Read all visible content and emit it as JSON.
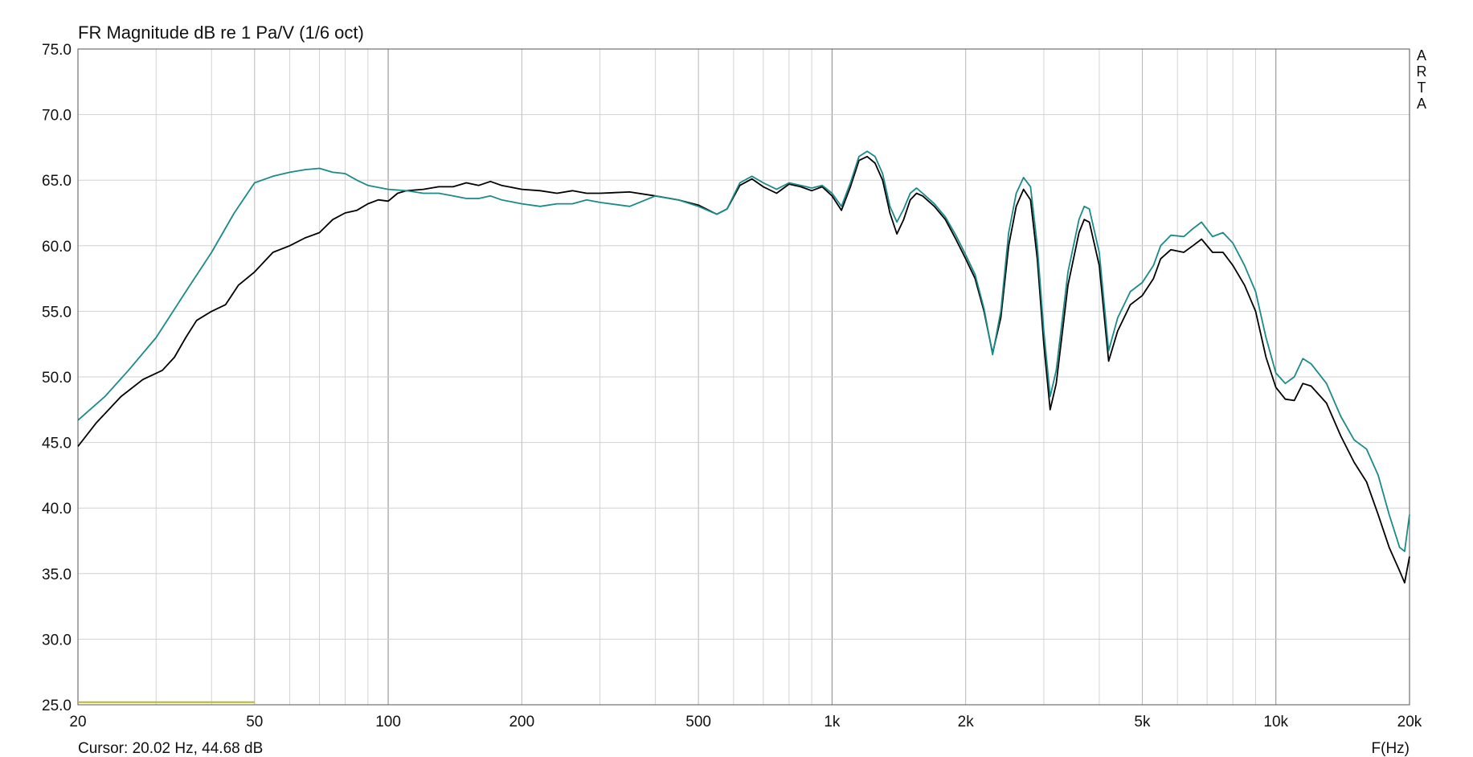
{
  "chart_data": {
    "type": "line",
    "title": "FR Magnitude dB re 1 Pa/V (1/6 oct)",
    "xlabel": "F(Hz)",
    "ylabel": "",
    "xscale": "log",
    "xlim": [
      20,
      20000
    ],
    "ylim": [
      25,
      75
    ],
    "grid": true,
    "x_tick_labels": [
      {
        "value": 20,
        "label": "20"
      },
      {
        "value": 50,
        "label": "50"
      },
      {
        "value": 100,
        "label": "100"
      },
      {
        "value": 200,
        "label": "200"
      },
      {
        "value": 500,
        "label": "500"
      },
      {
        "value": 1000,
        "label": "1k"
      },
      {
        "value": 2000,
        "label": "2k"
      },
      {
        "value": 5000,
        "label": "5k"
      },
      {
        "value": 10000,
        "label": "10k"
      },
      {
        "value": 20000,
        "label": "20k"
      }
    ],
    "y_tick_labels": [
      "25.0",
      "30.0",
      "35.0",
      "40.0",
      "45.0",
      "50.0",
      "55.0",
      "60.0",
      "65.0",
      "70.0",
      "75.0"
    ],
    "watermark": "ARTA",
    "cursor_text": "Cursor: 20.02 Hz, 44.68 dB",
    "series": [
      {
        "color": "#000000",
        "points": [
          [
            20,
            44.7
          ],
          [
            22,
            46.5
          ],
          [
            25,
            48.5
          ],
          [
            28,
            49.8
          ],
          [
            31,
            50.5
          ],
          [
            33,
            51.5
          ],
          [
            35,
            53.0
          ],
          [
            37,
            54.3
          ],
          [
            40,
            55.0
          ],
          [
            43,
            55.5
          ],
          [
            46,
            57.0
          ],
          [
            50,
            58.0
          ],
          [
            55,
            59.5
          ],
          [
            60,
            60.0
          ],
          [
            65,
            60.6
          ],
          [
            70,
            61.0
          ],
          [
            75,
            62.0
          ],
          [
            80,
            62.5
          ],
          [
            85,
            62.7
          ],
          [
            90,
            63.2
          ],
          [
            95,
            63.5
          ],
          [
            100,
            63.4
          ],
          [
            105,
            64.0
          ],
          [
            110,
            64.2
          ],
          [
            120,
            64.3
          ],
          [
            130,
            64.5
          ],
          [
            140,
            64.5
          ],
          [
            150,
            64.8
          ],
          [
            160,
            64.6
          ],
          [
            170,
            64.9
          ],
          [
            180,
            64.6
          ],
          [
            200,
            64.3
          ],
          [
            220,
            64.2
          ],
          [
            240,
            64.0
          ],
          [
            260,
            64.2
          ],
          [
            280,
            64.0
          ],
          [
            300,
            64.0
          ],
          [
            350,
            64.1
          ],
          [
            400,
            63.8
          ],
          [
            450,
            63.5
          ],
          [
            500,
            63.1
          ],
          [
            550,
            62.4
          ],
          [
            580,
            62.8
          ],
          [
            620,
            64.6
          ],
          [
            660,
            65.1
          ],
          [
            700,
            64.5
          ],
          [
            750,
            64.0
          ],
          [
            800,
            64.7
          ],
          [
            850,
            64.5
          ],
          [
            900,
            64.2
          ],
          [
            950,
            64.5
          ],
          [
            1000,
            63.8
          ],
          [
            1050,
            62.7
          ],
          [
            1100,
            64.5
          ],
          [
            1150,
            66.5
          ],
          [
            1200,
            66.8
          ],
          [
            1250,
            66.3
          ],
          [
            1300,
            65.0
          ],
          [
            1350,
            62.5
          ],
          [
            1400,
            60.9
          ],
          [
            1450,
            62.0
          ],
          [
            1500,
            63.5
          ],
          [
            1550,
            64.0
          ],
          [
            1600,
            63.8
          ],
          [
            1700,
            63.0
          ],
          [
            1800,
            62.0
          ],
          [
            1900,
            60.5
          ],
          [
            2000,
            59.0
          ],
          [
            2100,
            57.5
          ],
          [
            2200,
            55.0
          ],
          [
            2300,
            51.8
          ],
          [
            2400,
            54.5
          ],
          [
            2500,
            60.0
          ],
          [
            2600,
            63.0
          ],
          [
            2700,
            64.3
          ],
          [
            2800,
            63.5
          ],
          [
            2900,
            59.0
          ],
          [
            3000,
            52.5
          ],
          [
            3100,
            47.5
          ],
          [
            3200,
            49.5
          ],
          [
            3400,
            57.0
          ],
          [
            3600,
            61.0
          ],
          [
            3700,
            62.0
          ],
          [
            3800,
            61.8
          ],
          [
            4000,
            58.5
          ],
          [
            4200,
            51.2
          ],
          [
            4400,
            53.5
          ],
          [
            4700,
            55.5
          ],
          [
            5000,
            56.2
          ],
          [
            5300,
            57.5
          ],
          [
            5500,
            59.0
          ],
          [
            5800,
            59.7
          ],
          [
            6200,
            59.5
          ],
          [
            6500,
            60.0
          ],
          [
            6800,
            60.5
          ],
          [
            7200,
            59.5
          ],
          [
            7600,
            59.5
          ],
          [
            8000,
            58.5
          ],
          [
            8500,
            57.0
          ],
          [
            9000,
            55.0
          ],
          [
            9500,
            51.5
          ],
          [
            10000,
            49.2
          ],
          [
            10500,
            48.3
          ],
          [
            11000,
            48.2
          ],
          [
            11500,
            49.5
          ],
          [
            12000,
            49.3
          ],
          [
            13000,
            48.0
          ],
          [
            14000,
            45.5
          ],
          [
            15000,
            43.5
          ],
          [
            16000,
            42.0
          ],
          [
            17000,
            39.5
          ],
          [
            18000,
            37.0
          ],
          [
            19000,
            35.2
          ],
          [
            19500,
            34.3
          ],
          [
            20000,
            36.3
          ]
        ]
      },
      {
        "color": "#1a8a8a",
        "points": [
          [
            20,
            46.7
          ],
          [
            23,
            48.5
          ],
          [
            26,
            50.5
          ],
          [
            30,
            53.0
          ],
          [
            35,
            56.5
          ],
          [
            40,
            59.5
          ],
          [
            45,
            62.5
          ],
          [
            50,
            64.8
          ],
          [
            55,
            65.3
          ],
          [
            60,
            65.6
          ],
          [
            65,
            65.8
          ],
          [
            70,
            65.9
          ],
          [
            75,
            65.6
          ],
          [
            80,
            65.5
          ],
          [
            85,
            65.0
          ],
          [
            90,
            64.6
          ],
          [
            100,
            64.3
          ],
          [
            110,
            64.2
          ],
          [
            120,
            64.0
          ],
          [
            130,
            64.0
          ],
          [
            140,
            63.8
          ],
          [
            150,
            63.6
          ],
          [
            160,
            63.6
          ],
          [
            170,
            63.8
          ],
          [
            180,
            63.5
          ],
          [
            200,
            63.2
          ],
          [
            220,
            63.0
          ],
          [
            240,
            63.2
          ],
          [
            260,
            63.2
          ],
          [
            280,
            63.5
          ],
          [
            300,
            63.3
          ],
          [
            350,
            63.0
          ],
          [
            400,
            63.8
          ],
          [
            450,
            63.5
          ],
          [
            500,
            63.0
          ],
          [
            550,
            62.4
          ],
          [
            580,
            62.8
          ],
          [
            620,
            64.8
          ],
          [
            660,
            65.3
          ],
          [
            700,
            64.8
          ],
          [
            750,
            64.3
          ],
          [
            800,
            64.8
          ],
          [
            850,
            64.6
          ],
          [
            900,
            64.4
          ],
          [
            950,
            64.6
          ],
          [
            1000,
            64.0
          ],
          [
            1050,
            63.0
          ],
          [
            1100,
            64.8
          ],
          [
            1150,
            66.8
          ],
          [
            1200,
            67.2
          ],
          [
            1250,
            66.8
          ],
          [
            1300,
            65.5
          ],
          [
            1350,
            63.0
          ],
          [
            1400,
            61.8
          ],
          [
            1450,
            62.8
          ],
          [
            1500,
            64.0
          ],
          [
            1550,
            64.4
          ],
          [
            1600,
            64.0
          ],
          [
            1700,
            63.2
          ],
          [
            1800,
            62.2
          ],
          [
            1900,
            60.8
          ],
          [
            2000,
            59.3
          ],
          [
            2100,
            57.8
          ],
          [
            2200,
            55.2
          ],
          [
            2300,
            51.7
          ],
          [
            2400,
            55.0
          ],
          [
            2500,
            61.0
          ],
          [
            2600,
            64.0
          ],
          [
            2700,
            65.2
          ],
          [
            2800,
            64.5
          ],
          [
            2900,
            60.0
          ],
          [
            3000,
            53.5
          ],
          [
            3100,
            48.5
          ],
          [
            3200,
            50.5
          ],
          [
            3400,
            58.0
          ],
          [
            3600,
            62.0
          ],
          [
            3700,
            63.0
          ],
          [
            3800,
            62.8
          ],
          [
            4000,
            59.5
          ],
          [
            4200,
            52.0
          ],
          [
            4400,
            54.5
          ],
          [
            4700,
            56.5
          ],
          [
            5000,
            57.2
          ],
          [
            5300,
            58.5
          ],
          [
            5500,
            60.0
          ],
          [
            5800,
            60.8
          ],
          [
            6200,
            60.7
          ],
          [
            6500,
            61.3
          ],
          [
            6800,
            61.8
          ],
          [
            7200,
            60.7
          ],
          [
            7600,
            61.0
          ],
          [
            8000,
            60.2
          ],
          [
            8500,
            58.5
          ],
          [
            9000,
            56.5
          ],
          [
            9500,
            53.0
          ],
          [
            10000,
            50.3
          ],
          [
            10500,
            49.5
          ],
          [
            11000,
            50.0
          ],
          [
            11500,
            51.4
          ],
          [
            12000,
            51.0
          ],
          [
            13000,
            49.5
          ],
          [
            14000,
            47.0
          ],
          [
            15000,
            45.2
          ],
          [
            16000,
            44.5
          ],
          [
            17000,
            42.5
          ],
          [
            18000,
            39.5
          ],
          [
            19000,
            37.0
          ],
          [
            19500,
            36.7
          ],
          [
            20000,
            39.5
          ]
        ]
      },
      {
        "color": "#b8b820",
        "points": [
          [
            20,
            25.2
          ],
          [
            50,
            25.2
          ]
        ]
      }
    ]
  }
}
